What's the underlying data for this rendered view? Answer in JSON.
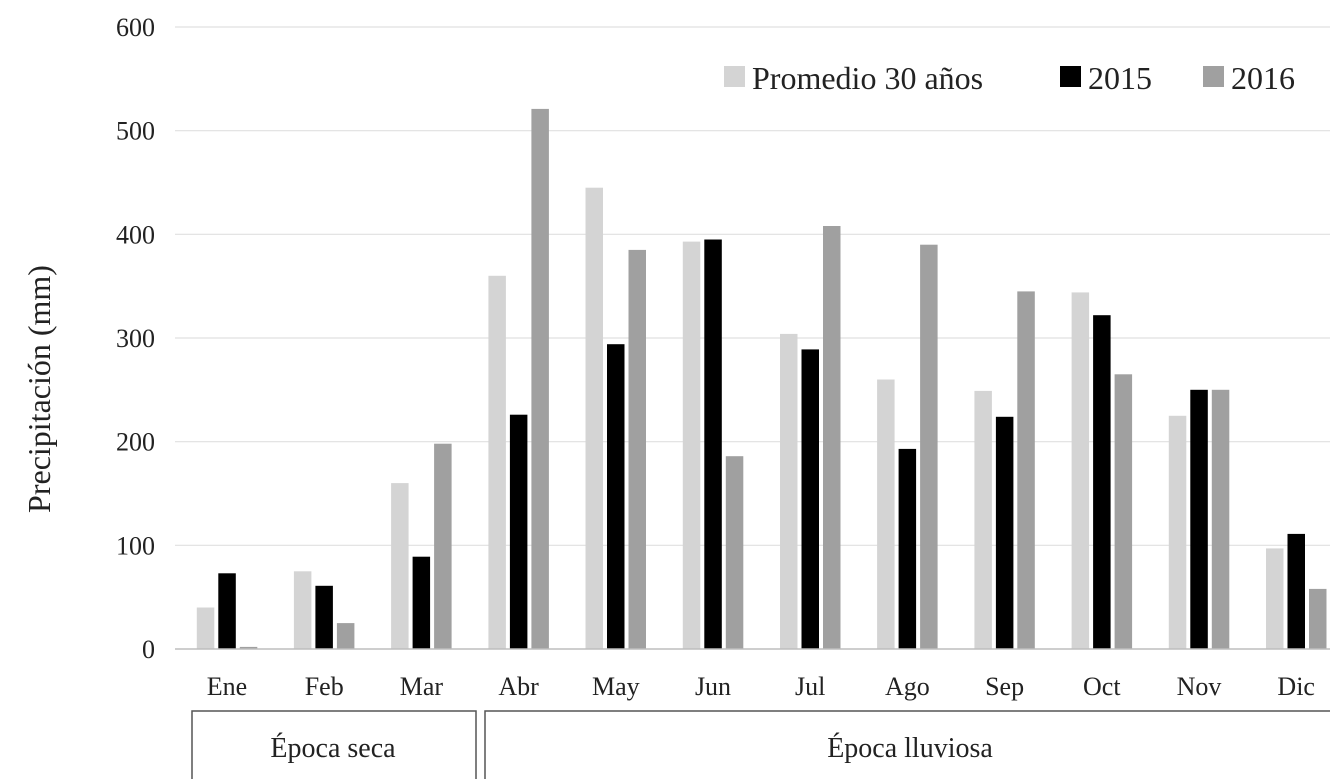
{
  "chart_data": {
    "type": "bar",
    "title": "",
    "xlabel": "",
    "ylabel": "Precipitación (mm)",
    "ylim": [
      0,
      600
    ],
    "yticks": [
      0,
      100,
      200,
      300,
      400,
      500,
      600
    ],
    "grid": true,
    "legend_position": "top-right",
    "categories": [
      "Ene",
      "Feb",
      "Mar",
      "Abr",
      "May",
      "Jun",
      "Jul",
      "Ago",
      "Sep",
      "Oct",
      "Nov",
      "Dic"
    ],
    "series": [
      {
        "name": "Promedio 30 años",
        "color": "#d4d4d4",
        "values": [
          40,
          75,
          160,
          360,
          445,
          393,
          304,
          260,
          249,
          344,
          225,
          97
        ]
      },
      {
        "name": "2015",
        "color": "#000000",
        "values": [
          73,
          61,
          89,
          226,
          294,
          395,
          289,
          193,
          224,
          322,
          250,
          111
        ]
      },
      {
        "name": "2016",
        "color": "#a0a0a0",
        "values": [
          2,
          25,
          198,
          521,
          385,
          186,
          408,
          390,
          345,
          265,
          250,
          58
        ]
      }
    ],
    "groups": [
      {
        "label": "Época seca",
        "categories": [
          "Ene",
          "Feb",
          "Mar"
        ]
      },
      {
        "label": "Época lluviosa",
        "categories": [
          "Abr",
          "May",
          "Jun",
          "Jul",
          "Ago",
          "Sep",
          "Oct",
          "Nov",
          "Dic"
        ]
      }
    ]
  }
}
